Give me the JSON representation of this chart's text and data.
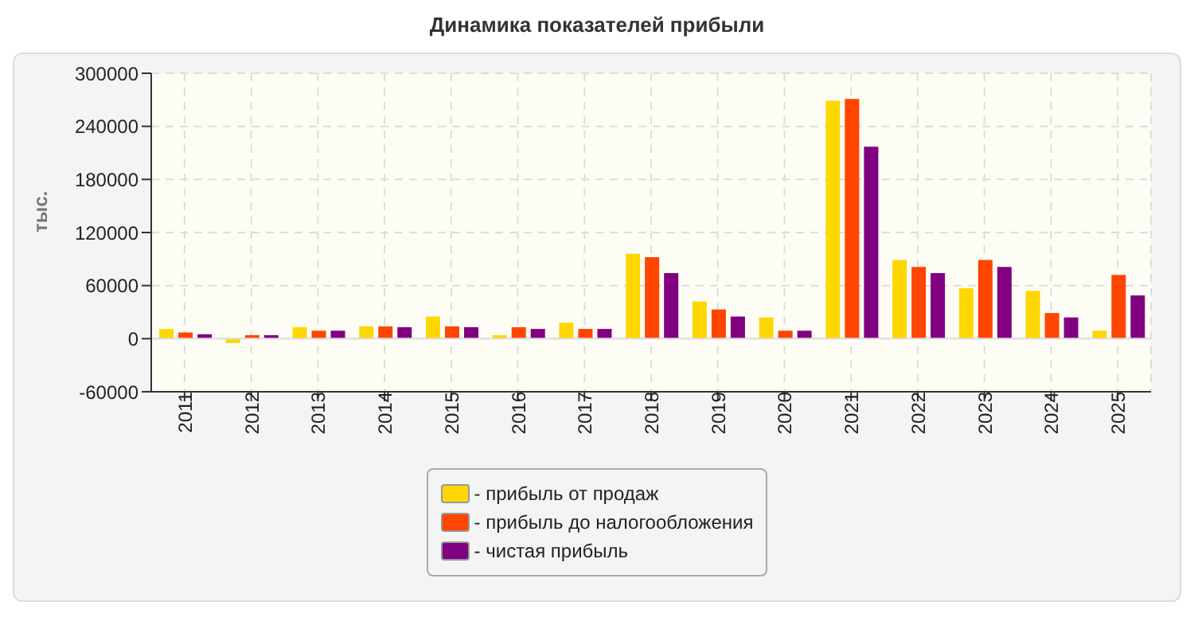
{
  "chart_data": {
    "type": "bar",
    "title": "Динамика показателей прибыли",
    "ylabel": "тыс.",
    "categories": [
      "2011",
      "2012",
      "2013",
      "2014",
      "2015",
      "2016",
      "2017",
      "2018",
      "2019",
      "2020",
      "2021",
      "2022",
      "2023",
      "2024",
      "2025"
    ],
    "series": [
      {
        "name": "- прибыль от продаж",
        "color": "#ffd700",
        "values": [
          11000,
          -5000,
          13000,
          14000,
          25000,
          4000,
          18000,
          96000,
          42000,
          24000,
          269000,
          89000,
          57000,
          54000,
          9000
        ]
      },
      {
        "name": "- прибыль до налогообложения",
        "color": "#ff4500",
        "values": [
          7000,
          4000,
          9000,
          14000,
          14000,
          13000,
          11000,
          92000,
          33000,
          9000,
          271000,
          81000,
          89000,
          29000,
          72000
        ]
      },
      {
        "name": "- чистая прибыль",
        "color": "#800080",
        "values": [
          5000,
          4000,
          9000,
          13000,
          13000,
          11000,
          11000,
          74000,
          25000,
          9000,
          217000,
          74000,
          81000,
          24000,
          49000
        ]
      }
    ],
    "ylim": [
      -60000,
      300000
    ],
    "yticks": [
      -60000,
      0,
      60000,
      120000,
      180000,
      240000,
      300000
    ],
    "grid": true,
    "legend": "bottom"
  }
}
